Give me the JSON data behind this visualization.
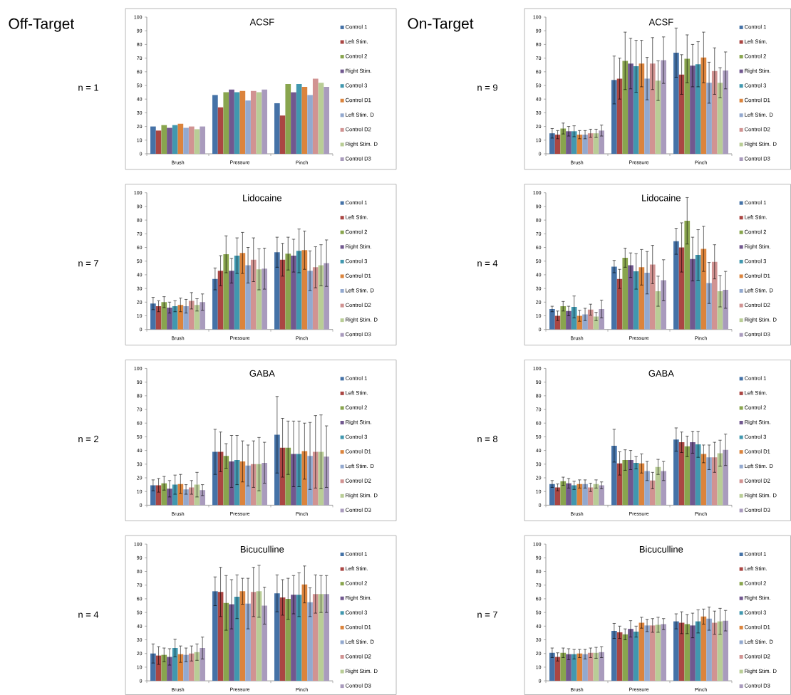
{
  "chart_data": [
    {
      "type": "bar",
      "title": "ACSF",
      "categories": [
        "Brush",
        "Pressure",
        "Pinch"
      ],
      "ylim": [
        0,
        100
      ],
      "yticks": [
        0,
        10,
        20,
        30,
        40,
        50,
        60,
        70,
        80,
        90,
        100
      ],
      "legend": "right",
      "annotations": [
        "Off-Target",
        "n = 1"
      ],
      "series": [
        {
          "name": "Control 1",
          "color": "#4572a7",
          "values": [
            20,
            43,
            37
          ]
        },
        {
          "name": "Left Stim.",
          "color": "#aa4643",
          "values": [
            17,
            34,
            28
          ]
        },
        {
          "name": "Control 2",
          "color": "#89a54e",
          "values": [
            21,
            45,
            51
          ]
        },
        {
          "name": "Right Stim.",
          "color": "#71588f",
          "values": [
            19,
            47,
            45
          ]
        },
        {
          "name": "Control 3",
          "color": "#4198af",
          "values": [
            21,
            45,
            51
          ]
        },
        {
          "name": "Control D1",
          "color": "#db843d",
          "values": [
            22,
            46,
            49
          ]
        },
        {
          "name": "Left Stim. D",
          "color": "#93a9cf",
          "values": [
            19,
            39,
            43
          ]
        },
        {
          "name": "Control D2",
          "color": "#d19392",
          "values": [
            20,
            46,
            55
          ]
        },
        {
          "name": "Right Stim. D",
          "color": "#b9cd96",
          "values": [
            18,
            45,
            52
          ]
        },
        {
          "name": "Control D3",
          "color": "#a99bbd",
          "values": [
            20,
            47,
            49
          ]
        }
      ]
    },
    {
      "type": "bar",
      "title": "ACSF",
      "categories": [
        "Brush",
        "Pressure",
        "Pinch"
      ],
      "ylim": [
        0,
        100
      ],
      "yticks": [
        0,
        10,
        20,
        30,
        40,
        50,
        60,
        70,
        80,
        90,
        100
      ],
      "legend": "right",
      "annotations": [
        "On-Target",
        "n = 9"
      ],
      "series": [
        {
          "name": "Control 1",
          "color": "#4572a7",
          "values": [
            15,
            54,
            74
          ],
          "errors": [
            3.5,
            17.5,
            18
          ]
        },
        {
          "name": "Left Stim.",
          "color": "#aa4643",
          "values": [
            14,
            55,
            58
          ],
          "errors": [
            3,
            15,
            14.5
          ]
        },
        {
          "name": "Control 2",
          "color": "#89a54e",
          "values": [
            18.5,
            68,
            69.5
          ],
          "errors": [
            4,
            21,
            17.5
          ]
        },
        {
          "name": "Right Stim.",
          "color": "#71588f",
          "values": [
            16.5,
            66,
            64.5
          ],
          "errors": [
            3.5,
            18.5,
            15.5
          ]
        },
        {
          "name": "Control 3",
          "color": "#4198af",
          "values": [
            16.5,
            64,
            65.5
          ],
          "errors": [
            4,
            19,
            16.5
          ]
        },
        {
          "name": "Control D1",
          "color": "#db843d",
          "values": [
            14,
            66,
            70.5
          ],
          "errors": [
            3,
            17,
            18.5
          ]
        },
        {
          "name": "Left Stim. D",
          "color": "#93a9cf",
          "values": [
            14,
            55,
            52
          ],
          "errors": [
            3,
            15.5,
            15
          ]
        },
        {
          "name": "Control D2",
          "color": "#d19392",
          "values": [
            15,
            66,
            60.5
          ],
          "errors": [
            3,
            19,
            17
          ]
        },
        {
          "name": "Right Stim. D",
          "color": "#b9cd96",
          "values": [
            15,
            53.5,
            52
          ],
          "errors": [
            3,
            14.5,
            11
          ]
        },
        {
          "name": "Control D3",
          "color": "#a99bbd",
          "values": [
            17,
            68.5,
            61
          ],
          "errors": [
            4,
            17,
            13.5
          ]
        }
      ]
    },
    {
      "type": "bar",
      "title": "Lidocaine",
      "categories": [
        "Brush",
        "Pressure",
        "Pinch"
      ],
      "ylim": [
        0,
        100
      ],
      "yticks": [
        0,
        10,
        20,
        30,
        40,
        50,
        60,
        70,
        80,
        90,
        100
      ],
      "legend": "right",
      "annotations": [
        "n = 7"
      ],
      "series": [
        {
          "name": "Control 1",
          "color": "#4572a7",
          "values": [
            19,
            37,
            56.5
          ],
          "errors": [
            4.5,
            8,
            11
          ]
        },
        {
          "name": "Left Stim.",
          "color": "#aa4643",
          "values": [
            17,
            43,
            51
          ],
          "errors": [
            4,
            11,
            12
          ]
        },
        {
          "name": "Control 2",
          "color": "#89a54e",
          "values": [
            20,
            55,
            55.5
          ],
          "errors": [
            4,
            13.5,
            12
          ]
        },
        {
          "name": "Right Stim.",
          "color": "#71588f",
          "values": [
            16,
            43,
            54
          ],
          "errors": [
            4,
            9,
            12
          ]
        },
        {
          "name": "Control 3",
          "color": "#4198af",
          "values": [
            17,
            54,
            57.5
          ],
          "errors": [
            4,
            13,
            16
          ]
        },
        {
          "name": "Control D1",
          "color": "#db843d",
          "values": [
            18,
            56,
            58
          ],
          "errors": [
            5,
            15,
            14
          ]
        },
        {
          "name": "Left Stim. D",
          "color": "#93a9cf",
          "values": [
            17,
            47,
            43
          ],
          "errors": [
            5,
            13,
            14.5
          ]
        },
        {
          "name": "Control D2",
          "color": "#d19392",
          "values": [
            21,
            51,
            45.5
          ],
          "errors": [
            6,
            16,
            15
          ]
        },
        {
          "name": "Right Stim. D",
          "color": "#b9cd96",
          "values": [
            18,
            44,
            47
          ],
          "errors": [
            4.5,
            15,
            15
          ]
        },
        {
          "name": "Control D3",
          "color": "#a99bbd",
          "values": [
            20,
            44.5,
            48.5
          ],
          "errors": [
            6,
            15,
            17
          ]
        }
      ]
    },
    {
      "type": "bar",
      "title": "Lidocaine",
      "categories": [
        "Brush",
        "Pressure",
        "Pinch"
      ],
      "ylim": [
        0,
        100
      ],
      "yticks": [
        0,
        10,
        20,
        30,
        40,
        50,
        60,
        70,
        80,
        90,
        100
      ],
      "legend": "right",
      "annotations": [
        "n = 4"
      ],
      "series": [
        {
          "name": "Control 1",
          "color": "#4572a7",
          "values": [
            15,
            46,
            64.5
          ],
          "errors": [
            2,
            4.5,
            9.5
          ]
        },
        {
          "name": "Left Stim.",
          "color": "#aa4643",
          "values": [
            10,
            37,
            60
          ],
          "errors": [
            3.5,
            7,
            18
          ]
        },
        {
          "name": "Control 2",
          "color": "#89a54e",
          "values": [
            17,
            52.5,
            79.5
          ],
          "errors": [
            3.5,
            7,
            17
          ]
        },
        {
          "name": "Right Stim.",
          "color": "#71588f",
          "values": [
            13.5,
            47,
            51.5
          ],
          "errors": [
            3.5,
            9,
            16
          ]
        },
        {
          "name": "Control 3",
          "color": "#4198af",
          "values": [
            16.5,
            42.5,
            54.5
          ],
          "errors": [
            8,
            13,
            18.5
          ]
        },
        {
          "name": "Control D1",
          "color": "#db843d",
          "values": [
            10,
            45.5,
            59
          ],
          "errors": [
            4,
            13,
            16.5
          ]
        },
        {
          "name": "Left Stim. D",
          "color": "#93a9cf",
          "values": [
            11,
            41.5,
            34
          ],
          "errors": [
            4.5,
            15.5,
            15
          ]
        },
        {
          "name": "Control D2",
          "color": "#d19392",
          "values": [
            14.5,
            47.5,
            49.5
          ],
          "errors": [
            4,
            14,
            12.5
          ]
        },
        {
          "name": "Right Stim. D",
          "color": "#b9cd96",
          "values": [
            9.5,
            28,
            28
          ],
          "errors": [
            3,
            11,
            11.5
          ]
        },
        {
          "name": "Control D3",
          "color": "#a99bbd",
          "values": [
            15,
            36,
            29
          ],
          "errors": [
            6.5,
            15,
            13.5
          ]
        }
      ]
    },
    {
      "type": "bar",
      "title": "GABA",
      "categories": [
        "Brush",
        "Pressure",
        "Pinch"
      ],
      "ylim": [
        0,
        100
      ],
      "yticks": [
        0,
        10,
        20,
        30,
        40,
        50,
        60,
        70,
        80,
        90,
        100
      ],
      "legend": "right",
      "annotations": [
        "n = 2"
      ],
      "series": [
        {
          "name": "Control 1",
          "color": "#4572a7",
          "values": [
            14.5,
            39,
            51.5
          ],
          "errors": [
            4,
            16.5,
            28
          ]
        },
        {
          "name": "Left Stim.",
          "color": "#aa4643",
          "values": [
            14.5,
            39,
            42
          ],
          "errors": [
            5,
            14.5,
            21.5
          ]
        },
        {
          "name": "Control 2",
          "color": "#89a54e",
          "values": [
            16,
            36,
            42
          ],
          "errors": [
            5,
            9,
            19.5
          ]
        },
        {
          "name": "Right Stim.",
          "color": "#71588f",
          "values": [
            12,
            32,
            37.5
          ],
          "errors": [
            6,
            19,
            24
          ]
        },
        {
          "name": "Control 3",
          "color": "#4198af",
          "values": [
            15,
            33,
            37.5
          ],
          "errors": [
            7,
            18,
            24
          ]
        },
        {
          "name": "Control D1",
          "color": "#db843d",
          "values": [
            15.5,
            32,
            39.5
          ],
          "errors": [
            7,
            15,
            20.5
          ]
        },
        {
          "name": "Left Stim. D",
          "color": "#93a9cf",
          "values": [
            11.5,
            29,
            36
          ],
          "errors": [
            3.5,
            15,
            24.5
          ]
        },
        {
          "name": "Control D2",
          "color": "#d19392",
          "values": [
            13,
            30,
            39
          ],
          "errors": [
            5,
            17,
            26.5
          ]
        },
        {
          "name": "Right Stim. D",
          "color": "#b9cd96",
          "values": [
            15,
            30,
            39
          ],
          "errors": [
            9,
            19.5,
            27
          ]
        },
        {
          "name": "Control D3",
          "color": "#a99bbd",
          "values": [
            11,
            31,
            35.5
          ],
          "errors": [
            4,
            15,
            22.5
          ]
        }
      ]
    },
    {
      "type": "bar",
      "title": "GABA",
      "categories": [
        "Brush",
        "Pressure",
        "Pinch"
      ],
      "ylim": [
        0,
        100
      ],
      "yticks": [
        0,
        10,
        20,
        30,
        40,
        50,
        60,
        70,
        80,
        90,
        100
      ],
      "legend": "right",
      "annotations": [
        "n = 8"
      ],
      "series": [
        {
          "name": "Control 1",
          "color": "#4572a7",
          "values": [
            15.5,
            43.5,
            48
          ],
          "errors": [
            2.5,
            12,
            8.5
          ]
        },
        {
          "name": "Left Stim.",
          "color": "#aa4643",
          "values": [
            13,
            30.5,
            46
          ],
          "errors": [
            2.5,
            8.5,
            7.5
          ]
        },
        {
          "name": "Control 2",
          "color": "#89a54e",
          "values": [
            17.5,
            33,
            43
          ],
          "errors": [
            3,
            7.5,
            7.5
          ]
        },
        {
          "name": "Right Stim.",
          "color": "#71588f",
          "values": [
            16,
            33,
            46
          ],
          "errors": [
            3.5,
            7,
            8
          ]
        },
        {
          "name": "Control 3",
          "color": "#4198af",
          "values": [
            14.5,
            31,
            44.5
          ],
          "errors": [
            3,
            4.5,
            9.5
          ]
        },
        {
          "name": "Control D1",
          "color": "#db843d",
          "values": [
            15.5,
            30.5,
            37.5
          ],
          "errors": [
            3,
            7,
            6.5
          ]
        },
        {
          "name": "Left Stim. D",
          "color": "#93a9cf",
          "values": [
            15.5,
            25,
            35
          ],
          "errors": [
            3,
            7,
            9
          ]
        },
        {
          "name": "Control D2",
          "color": "#d19392",
          "values": [
            13,
            18,
            35
          ],
          "errors": [
            3,
            6,
            11
          ]
        },
        {
          "name": "Right Stim. D",
          "color": "#b9cd96",
          "values": [
            15.5,
            28,
            38
          ],
          "errors": [
            3,
            5.5,
            9.5
          ]
        },
        {
          "name": "Control D3",
          "color": "#a99bbd",
          "values": [
            14.5,
            25,
            40.5
          ],
          "errors": [
            2.5,
            7,
            11.5
          ]
        }
      ]
    },
    {
      "type": "bar",
      "title": "Bicuculline",
      "categories": [
        "Brush",
        "Pressure",
        "Pinch"
      ],
      "ylim": [
        0,
        100
      ],
      "yticks": [
        0,
        10,
        20,
        30,
        40,
        50,
        60,
        70,
        80,
        90,
        100
      ],
      "legend": "right",
      "annotations": [
        "n = 4"
      ],
      "series": [
        {
          "name": "Control 1",
          "color": "#4572a7",
          "values": [
            20,
            65.5,
            64
          ],
          "errors": [
            7,
            10.5,
            13.5
          ]
        },
        {
          "name": "Left Stim.",
          "color": "#aa4643",
          "values": [
            18.5,
            65,
            61
          ],
          "errors": [
            6.5,
            18,
            13
          ]
        },
        {
          "name": "Control 2",
          "color": "#89a54e",
          "values": [
            19,
            57,
            60
          ],
          "errors": [
            5,
            20,
            15
          ]
        },
        {
          "name": "Right Stim.",
          "color": "#71588f",
          "values": [
            17.5,
            56,
            63
          ],
          "errors": [
            6,
            18,
            14
          ]
        },
        {
          "name": "Control 3",
          "color": "#4198af",
          "values": [
            24,
            61.5,
            63
          ],
          "errors": [
            6.5,
            16,
            16
          ]
        },
        {
          "name": "Control D1",
          "color": "#db843d",
          "values": [
            19.5,
            65.5,
            70.5
          ],
          "errors": [
            6,
            9.5,
            13.5
          ]
        },
        {
          "name": "Left Stim. D",
          "color": "#93a9cf",
          "values": [
            19,
            56.5,
            57.5
          ],
          "errors": [
            5,
            18.5,
            10.5
          ]
        },
        {
          "name": "Control D2",
          "color": "#d19392",
          "values": [
            20,
            65,
            63.5
          ],
          "errors": [
            5.5,
            18,
            14
          ]
        },
        {
          "name": "Right Stim. D",
          "color": "#b9cd96",
          "values": [
            21,
            65.5,
            63.5
          ],
          "errors": [
            6,
            19,
            13.5
          ]
        },
        {
          "name": "Control D3",
          "color": "#a99bbd",
          "values": [
            24,
            55,
            63.5
          ],
          "errors": [
            8,
            13.5,
            13.5
          ]
        }
      ]
    },
    {
      "type": "bar",
      "title": "Bicuculline",
      "categories": [
        "Brush",
        "Pressure",
        "Pinch"
      ],
      "ylim": [
        0,
        100
      ],
      "yticks": [
        0,
        10,
        20,
        30,
        40,
        50,
        60,
        70,
        80,
        90,
        100
      ],
      "legend": "right",
      "annotations": [
        "n = 7"
      ],
      "series": [
        {
          "name": "Control 1",
          "color": "#4572a7",
          "values": [
            20.5,
            36.5,
            43.5
          ],
          "errors": [
            3.5,
            5.5,
            5.5
          ]
        },
        {
          "name": "Left Stim.",
          "color": "#aa4643",
          "values": [
            17.5,
            35.5,
            42.5
          ],
          "errors": [
            3,
            4.5,
            8
          ]
        },
        {
          "name": "Control 2",
          "color": "#89a54e",
          "values": [
            20.5,
            34,
            41.5
          ],
          "errors": [
            3.5,
            4,
            7
          ]
        },
        {
          "name": "Right Stim.",
          "color": "#71588f",
          "values": [
            19.5,
            38,
            40.5
          ],
          "errors": [
            4,
            6,
            9
          ]
        },
        {
          "name": "Control 3",
          "color": "#4198af",
          "values": [
            19.5,
            36,
            43.5
          ],
          "errors": [
            3.5,
            4,
            8.5
          ]
        },
        {
          "name": "Control D1",
          "color": "#db843d",
          "values": [
            20,
            42.5,
            47
          ],
          "errors": [
            3,
            4,
            5.5
          ]
        },
        {
          "name": "Left Stim. D",
          "color": "#93a9cf",
          "values": [
            19.5,
            40.5,
            45.5
          ],
          "errors": [
            3.5,
            4.5,
            8.5
          ]
        },
        {
          "name": "Control D2",
          "color": "#d19392",
          "values": [
            20.5,
            40.5,
            42.5
          ],
          "errors": [
            3.5,
            5,
            8.5
          ]
        },
        {
          "name": "Right Stim. D",
          "color": "#b9cd96",
          "values": [
            20.5,
            41,
            43.5
          ],
          "errors": [
            4,
            5.5,
            9.5
          ]
        },
        {
          "name": "Control D3",
          "color": "#a99bbd",
          "values": [
            21,
            41.5,
            44
          ],
          "errors": [
            4,
            4,
            7.5
          ]
        }
      ]
    }
  ]
}
